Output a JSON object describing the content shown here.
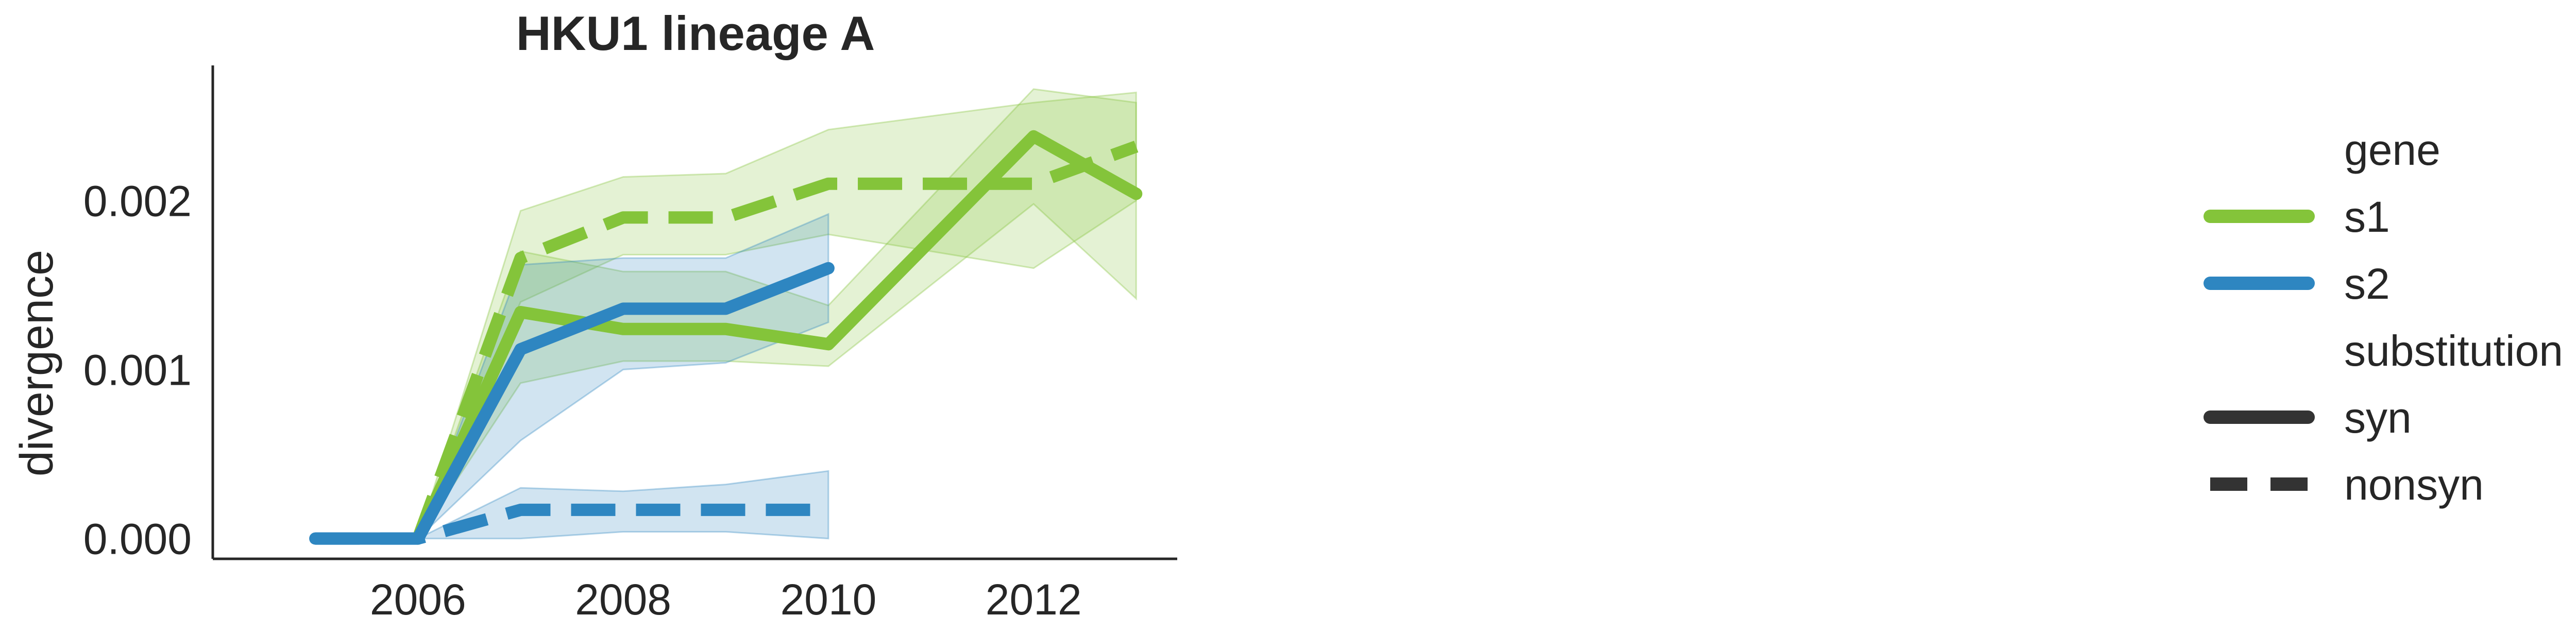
{
  "chart_data": {
    "type": "line",
    "title": "HKU1 lineage A",
    "xlabel": "",
    "ylabel": "divergence",
    "xlim": [
      2004.0,
      2013.4
    ],
    "ylim": [
      -0.00012,
      0.0028
    ],
    "xticks": [
      2006,
      2008,
      2010,
      2012
    ],
    "yticks": [
      0.0,
      0.001,
      0.002
    ],
    "ytick_labels": [
      "0.000",
      "0.001",
      "0.002"
    ],
    "grid": false,
    "legend_position": "right",
    "legend": {
      "hue_title": "gene",
      "style_title": "substitution",
      "hue_entries": [
        {
          "label": "s1",
          "color": "#84c43a"
        },
        {
          "label": "s2",
          "color": "#2e86c1"
        }
      ],
      "style_entries": [
        {
          "label": "syn",
          "dash": "solid"
        },
        {
          "label": "nonsyn",
          "dash": "dashed"
        }
      ],
      "marker_color": "#333333"
    },
    "series": [
      {
        "gene": "s1",
        "substitution": "syn",
        "color": "#84c43a",
        "dash": "solid",
        "x": [
          2006,
          2007,
          2008,
          2009,
          2010,
          2012,
          2013
        ],
        "y": [
          0.0,
          0.00134,
          0.00124,
          0.00124,
          0.00115,
          0.00238,
          0.00204
        ],
        "lower": [
          0.0,
          0.00092,
          0.00105,
          0.00105,
          0.00102,
          0.00198,
          0.00142
        ],
        "upper": [
          0.0,
          0.0017,
          0.00158,
          0.00158,
          0.00138,
          0.00266,
          0.00258
        ]
      },
      {
        "gene": "s1",
        "substitution": "nonsyn",
        "color": "#84c43a",
        "dash": "dashed",
        "x": [
          2006,
          2007,
          2008,
          2009,
          2010,
          2012,
          2013
        ],
        "y": [
          0.0,
          0.00166,
          0.0019,
          0.0019,
          0.0021,
          0.0021,
          0.00232
        ],
        "lower": [
          0.0,
          0.0014,
          0.00168,
          0.00168,
          0.0018,
          0.0016,
          0.002
        ],
        "upper": [
          0.0,
          0.00194,
          0.00214,
          0.00216,
          0.00242,
          0.00258,
          0.00264
        ]
      },
      {
        "gene": "s2",
        "substitution": "syn",
        "color": "#2e86c1",
        "dash": "solid",
        "x": [
          2005,
          2006,
          2007,
          2008,
          2009,
          2010
        ],
        "y": [
          0.0,
          0.0,
          0.00112,
          0.00136,
          0.00136,
          0.0016
        ],
        "lower": [
          0.0,
          0.0,
          0.00058,
          0.001,
          0.00104,
          0.00128
        ],
        "upper": [
          0.0,
          0.0,
          0.00162,
          0.00166,
          0.00166,
          0.00192
        ]
      },
      {
        "gene": "s2",
        "substitution": "nonsyn",
        "color": "#2e86c1",
        "dash": "dashed",
        "x": [
          2005,
          2006,
          2007,
          2008,
          2009,
          2010
        ],
        "y": [
          0.0,
          0.0,
          0.00017,
          0.00017,
          0.00017,
          0.00017
        ],
        "lower": [
          0.0,
          0.0,
          0.0,
          4e-05,
          4e-05,
          0.0
        ],
        "upper": [
          0.0,
          0.0,
          0.0003,
          0.00028,
          0.00032,
          0.0004
        ]
      }
    ]
  }
}
